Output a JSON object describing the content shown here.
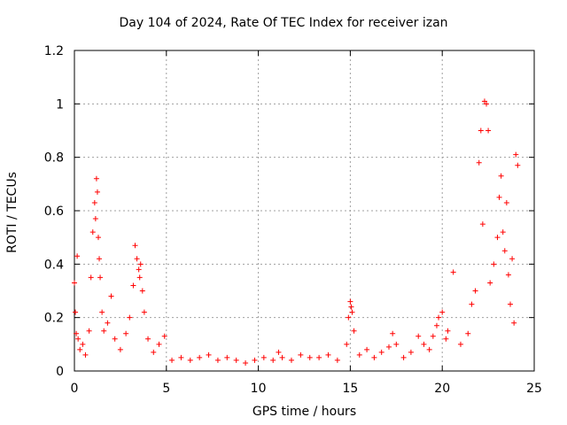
{
  "chart_data": {
    "type": "scatter",
    "title": "Day 104 of 2024, Rate Of TEC Index for receiver izan",
    "xlabel": "GPS time / hours",
    "ylabel": "ROTI / TECUs",
    "xlim": [
      0,
      25
    ],
    "ylim": [
      0,
      1.2
    ],
    "xticks": [
      "0",
      "5",
      "10",
      "15",
      "20",
      "25"
    ],
    "yticks": [
      "0",
      "0.2",
      "0.4",
      "0.6",
      "0.8",
      "1",
      "1.2"
    ],
    "grid": true,
    "marker": "+",
    "marker_color": "#ff0000",
    "series": [
      {
        "x": [
          0.0,
          0.05,
          0.1,
          0.15,
          0.2,
          0.3,
          0.45,
          0.6,
          0.8,
          0.9,
          1.0,
          1.1,
          1.15,
          1.2,
          1.25,
          1.3,
          1.35,
          1.4,
          1.5,
          1.6,
          1.8,
          2.0,
          2.2,
          2.5,
          2.8,
          3.0,
          3.2,
          3.3,
          3.4,
          3.5,
          3.55,
          3.6,
          3.7,
          3.8,
          4.0,
          4.3,
          4.6,
          4.9,
          5.3,
          5.8,
          6.3,
          6.8,
          7.3,
          7.8,
          8.3,
          8.8,
          9.3,
          9.8,
          10.3,
          10.8,
          11.1,
          11.3,
          11.8,
          12.3,
          12.8,
          13.3,
          13.8,
          14.3,
          14.8,
          14.9,
          15.0,
          15.05,
          15.1,
          15.2,
          15.5,
          15.9,
          16.3,
          16.7,
          17.1,
          17.3,
          17.5,
          17.9,
          18.3,
          18.7,
          19.0,
          19.3,
          19.5,
          19.7,
          19.8,
          20.0,
          20.2,
          20.3,
          20.6,
          21.0,
          21.4,
          21.6,
          21.8,
          22.0,
          22.1,
          22.2,
          22.3,
          22.4,
          22.5,
          22.6,
          22.8,
          23.0,
          23.1,
          23.2,
          23.3,
          23.4,
          23.5,
          23.6,
          23.7,
          23.8,
          23.9,
          24.0,
          24.1
        ],
        "y": [
          0.33,
          0.22,
          0.14,
          0.43,
          0.12,
          0.08,
          0.1,
          0.06,
          0.15,
          0.35,
          0.52,
          0.63,
          0.57,
          0.72,
          0.67,
          0.5,
          0.42,
          0.35,
          0.22,
          0.15,
          0.18,
          0.28,
          0.12,
          0.08,
          0.14,
          0.2,
          0.32,
          0.47,
          0.42,
          0.38,
          0.35,
          0.4,
          0.3,
          0.22,
          0.12,
          0.07,
          0.1,
          0.13,
          0.04,
          0.05,
          0.04,
          0.05,
          0.06,
          0.04,
          0.05,
          0.04,
          0.03,
          0.04,
          0.05,
          0.04,
          0.07,
          0.05,
          0.04,
          0.06,
          0.05,
          0.05,
          0.06,
          0.04,
          0.1,
          0.2,
          0.26,
          0.24,
          0.22,
          0.15,
          0.06,
          0.08,
          0.05,
          0.07,
          0.09,
          0.14,
          0.1,
          0.05,
          0.07,
          0.13,
          0.1,
          0.08,
          0.13,
          0.17,
          0.2,
          0.22,
          0.12,
          0.15,
          0.37,
          0.1,
          0.14,
          0.25,
          0.3,
          0.78,
          0.9,
          0.55,
          1.01,
          1.0,
          0.9,
          0.33,
          0.4,
          0.5,
          0.65,
          0.73,
          0.52,
          0.45,
          0.63,
          0.36,
          0.25,
          0.42,
          0.18,
          0.81,
          0.77
        ]
      }
    ]
  }
}
